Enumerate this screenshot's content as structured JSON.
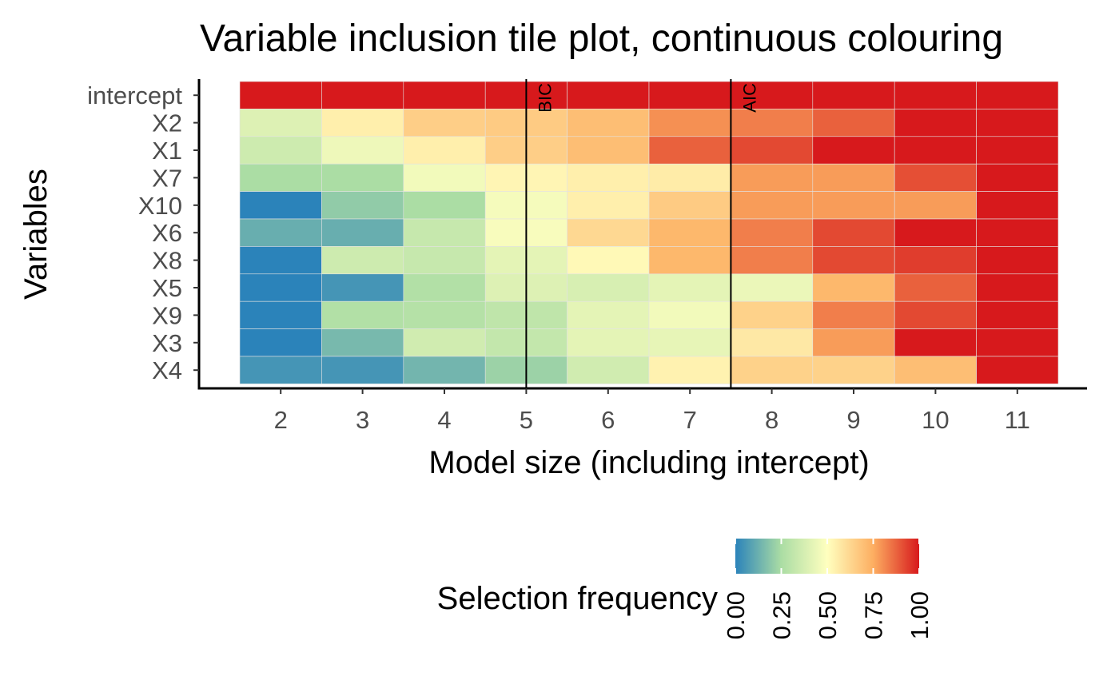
{
  "chart_data": {
    "type": "heatmap",
    "title": "Variable inclusion tile plot, continuous colouring",
    "xlabel": "Model size (including intercept)",
    "ylabel": "Variables",
    "x": [
      2,
      3,
      4,
      5,
      6,
      7,
      8,
      9,
      10,
      11
    ],
    "y": [
      "intercept",
      "X2",
      "X1",
      "X7",
      "X10",
      "X6",
      "X8",
      "X5",
      "X9",
      "X3",
      "X4"
    ],
    "z": [
      [
        1.0,
        1.0,
        1.0,
        1.0,
        1.0,
        1.0,
        1.0,
        1.0,
        1.0,
        1.0
      ],
      [
        0.4,
        0.55,
        0.65,
        0.66,
        0.7,
        0.8,
        0.83,
        0.88,
        1.0,
        1.0
      ],
      [
        0.35,
        0.45,
        0.55,
        0.65,
        0.7,
        0.88,
        0.92,
        1.0,
        1.0,
        1.0
      ],
      [
        0.25,
        0.25,
        0.46,
        0.53,
        0.55,
        0.56,
        0.78,
        0.78,
        0.91,
        1.0
      ],
      [
        0.0,
        0.2,
        0.25,
        0.47,
        0.55,
        0.66,
        0.78,
        0.78,
        0.78,
        1.0
      ],
      [
        0.12,
        0.12,
        0.33,
        0.48,
        0.62,
        0.72,
        0.83,
        0.92,
        1.0,
        1.0
      ],
      [
        0.0,
        0.35,
        0.33,
        0.42,
        0.52,
        0.72,
        0.83,
        0.92,
        0.94,
        1.0
      ],
      [
        0.0,
        0.05,
        0.27,
        0.4,
        0.38,
        0.42,
        0.44,
        0.72,
        0.88,
        1.0
      ],
      [
        0.0,
        0.27,
        0.28,
        0.31,
        0.42,
        0.46,
        0.64,
        0.83,
        0.92,
        1.0
      ],
      [
        0.0,
        0.15,
        0.36,
        0.32,
        0.42,
        0.43,
        0.57,
        0.78,
        1.0,
        1.0
      ],
      [
        0.05,
        0.05,
        0.14,
        0.22,
        0.36,
        0.54,
        0.64,
        0.64,
        0.7,
        1.0
      ]
    ],
    "vlines": [
      {
        "x": 5,
        "label": "BIC"
      },
      {
        "x": 7.5,
        "label": "AIC"
      }
    ],
    "legend": {
      "title": "Selection frequency",
      "position": "bottom",
      "ticks": [
        "0.00",
        "0.25",
        "0.50",
        "0.75",
        "1.00"
      ],
      "range": [
        0,
        1
      ]
    },
    "colorscale": [
      "#2B83BA",
      "#ABDDA4",
      "#FFFFBF",
      "#FDAE61",
      "#D7191C"
    ],
    "grid": false
  }
}
